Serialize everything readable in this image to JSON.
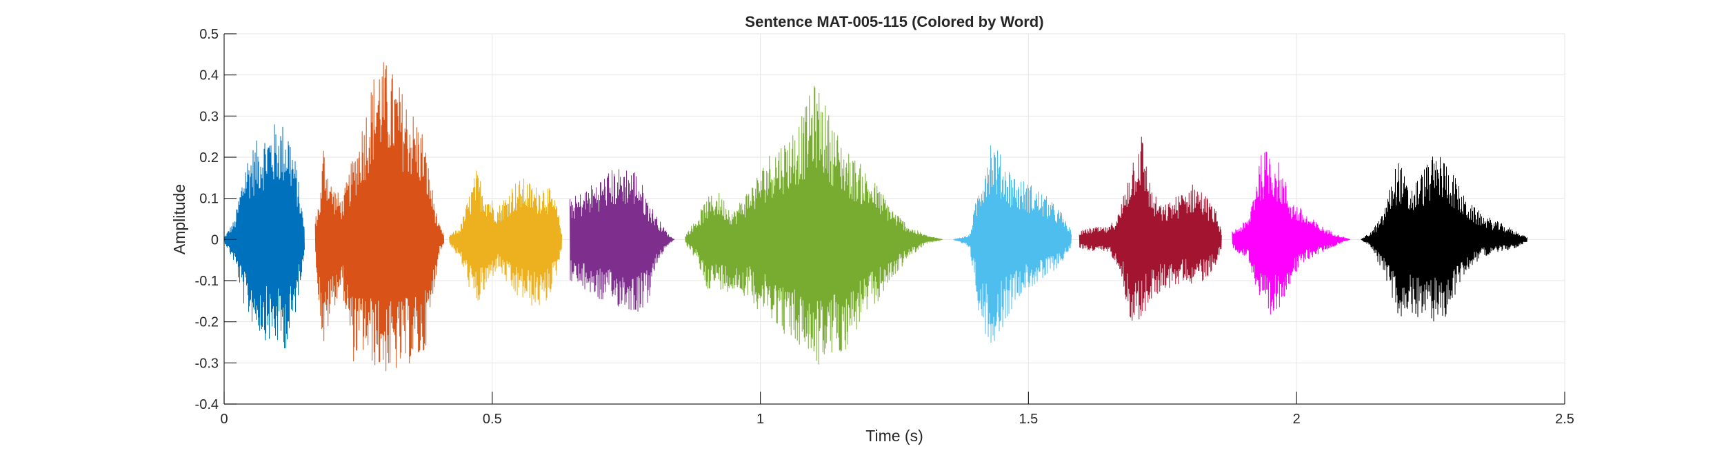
{
  "chart_data": {
    "type": "line",
    "title": "Sentence MAT-005-115 (Colored by Word)",
    "xlabel": "Time (s)",
    "ylabel": "Amplitude",
    "xlim": [
      0,
      2.5
    ],
    "ylim": [
      -0.4,
      0.5
    ],
    "grid": true,
    "legend": "none",
    "x_ticks": [
      0,
      0.5,
      1,
      1.5,
      2,
      2.5
    ],
    "x_tick_labels": [
      "0",
      "0.5",
      "1",
      "1.5",
      "2",
      "2.5"
    ],
    "y_ticks": [
      0.5,
      0.4,
      0.3,
      0.2,
      0.1,
      0,
      -0.1,
      -0.2,
      -0.3,
      -0.4
    ],
    "y_tick_labels": [
      "0.5",
      "0.4",
      "0.3",
      "0.2",
      "0.1",
      "0",
      "-0.1",
      "-0.2",
      "-0.3",
      "-0.4"
    ],
    "series": [
      {
        "color": "#0072BD",
        "t_start": 0.0,
        "t_end": 0.15,
        "envelope": [
          [
            0.0,
            0.005,
            0.005
          ],
          [
            0.02,
            0.05,
            0.06
          ],
          [
            0.04,
            0.2,
            0.18
          ],
          [
            0.06,
            0.24,
            0.22
          ],
          [
            0.08,
            0.27,
            0.25
          ],
          [
            0.1,
            0.29,
            0.26
          ],
          [
            0.12,
            0.28,
            0.27
          ],
          [
            0.135,
            0.18,
            0.17
          ],
          [
            0.15,
            0.03,
            0.03
          ]
        ]
      },
      {
        "color": "#D95319",
        "t_start": 0.17,
        "t_end": 0.41,
        "envelope": [
          [
            0.17,
            0.05,
            0.05
          ],
          [
            0.18,
            0.12,
            0.2
          ],
          [
            0.185,
            0.24,
            0.28
          ],
          [
            0.2,
            0.14,
            0.18
          ],
          [
            0.22,
            0.1,
            0.12
          ],
          [
            0.24,
            0.2,
            0.3
          ],
          [
            0.26,
            0.3,
            0.28
          ],
          [
            0.28,
            0.41,
            0.31
          ],
          [
            0.29,
            0.45,
            0.32
          ],
          [
            0.31,
            0.42,
            0.33
          ],
          [
            0.33,
            0.37,
            0.32
          ],
          [
            0.35,
            0.32,
            0.3
          ],
          [
            0.37,
            0.27,
            0.3
          ],
          [
            0.385,
            0.15,
            0.2
          ],
          [
            0.4,
            0.04,
            0.04
          ],
          [
            0.41,
            0.01,
            0.01
          ]
        ]
      },
      {
        "color": "#EDB120",
        "t_start": 0.42,
        "t_end": 0.63,
        "envelope": [
          [
            0.42,
            0.01,
            0.01
          ],
          [
            0.44,
            0.03,
            0.05
          ],
          [
            0.47,
            0.17,
            0.17
          ],
          [
            0.49,
            0.12,
            0.12
          ],
          [
            0.51,
            0.08,
            0.07
          ],
          [
            0.54,
            0.14,
            0.14
          ],
          [
            0.56,
            0.15,
            0.15
          ],
          [
            0.58,
            0.13,
            0.17
          ],
          [
            0.6,
            0.14,
            0.16
          ],
          [
            0.62,
            0.09,
            0.09
          ],
          [
            0.63,
            0.02,
            0.02
          ]
        ]
      },
      {
        "color": "#7E2F8E",
        "t_start": 0.645,
        "t_end": 0.84,
        "envelope": [
          [
            0.645,
            0.1,
            0.1
          ],
          [
            0.66,
            0.11,
            0.12
          ],
          [
            0.68,
            0.13,
            0.13
          ],
          [
            0.7,
            0.15,
            0.15
          ],
          [
            0.72,
            0.17,
            0.16
          ],
          [
            0.75,
            0.18,
            0.17
          ],
          [
            0.77,
            0.17,
            0.18
          ],
          [
            0.79,
            0.1,
            0.16
          ],
          [
            0.81,
            0.05,
            0.05
          ],
          [
            0.83,
            0.01,
            0.01
          ],
          [
            0.84,
            0.0,
            0.0
          ]
        ]
      },
      {
        "color": "#77AC30",
        "t_start": 0.86,
        "t_end": 1.34,
        "envelope": [
          [
            0.86,
            0.01,
            0.01
          ],
          [
            0.88,
            0.05,
            0.05
          ],
          [
            0.9,
            0.1,
            0.12
          ],
          [
            0.92,
            0.12,
            0.12
          ],
          [
            0.95,
            0.07,
            0.13
          ],
          [
            0.98,
            0.13,
            0.14
          ],
          [
            1.0,
            0.17,
            0.18
          ],
          [
            1.02,
            0.22,
            0.19
          ],
          [
            1.05,
            0.25,
            0.24
          ],
          [
            1.08,
            0.31,
            0.27
          ],
          [
            1.1,
            0.38,
            0.3
          ],
          [
            1.11,
            0.37,
            0.31
          ],
          [
            1.13,
            0.3,
            0.29
          ],
          [
            1.16,
            0.22,
            0.27
          ],
          [
            1.19,
            0.18,
            0.2
          ],
          [
            1.22,
            0.13,
            0.15
          ],
          [
            1.25,
            0.07,
            0.09
          ],
          [
            1.28,
            0.03,
            0.04
          ],
          [
            1.31,
            0.01,
            0.01
          ],
          [
            1.34,
            0.0,
            0.0
          ]
        ]
      },
      {
        "color": "#4DBEEE",
        "t_start": 1.36,
        "t_end": 1.58,
        "envelope": [
          [
            1.36,
            0.0,
            0.0
          ],
          [
            1.39,
            0.01,
            0.02
          ],
          [
            1.41,
            0.15,
            0.2
          ],
          [
            1.43,
            0.26,
            0.26
          ],
          [
            1.45,
            0.2,
            0.22
          ],
          [
            1.48,
            0.15,
            0.14
          ],
          [
            1.5,
            0.14,
            0.12
          ],
          [
            1.53,
            0.11,
            0.1
          ],
          [
            1.56,
            0.07,
            0.06
          ],
          [
            1.58,
            0.02,
            0.02
          ]
        ]
      },
      {
        "color": "#A2142F",
        "t_start": 1.595,
        "t_end": 1.86,
        "envelope": [
          [
            1.595,
            0.02,
            0.02
          ],
          [
            1.62,
            0.03,
            0.03
          ],
          [
            1.65,
            0.03,
            0.03
          ],
          [
            1.67,
            0.07,
            0.07
          ],
          [
            1.69,
            0.19,
            0.2
          ],
          [
            1.71,
            0.27,
            0.2
          ],
          [
            1.73,
            0.12,
            0.15
          ],
          [
            1.75,
            0.08,
            0.12
          ],
          [
            1.77,
            0.1,
            0.12
          ],
          [
            1.79,
            0.12,
            0.1
          ],
          [
            1.81,
            0.14,
            0.11
          ],
          [
            1.83,
            0.11,
            0.1
          ],
          [
            1.85,
            0.07,
            0.06
          ],
          [
            1.86,
            0.02,
            0.02
          ]
        ]
      },
      {
        "color": "#FF00FF",
        "t_start": 1.88,
        "t_end": 2.1,
        "envelope": [
          [
            1.88,
            0.02,
            0.02
          ],
          [
            1.91,
            0.05,
            0.05
          ],
          [
            1.93,
            0.2,
            0.15
          ],
          [
            1.95,
            0.23,
            0.22
          ],
          [
            1.97,
            0.18,
            0.16
          ],
          [
            1.99,
            0.1,
            0.1
          ],
          [
            2.02,
            0.06,
            0.05
          ],
          [
            2.05,
            0.03,
            0.03
          ],
          [
            2.08,
            0.01,
            0.01
          ],
          [
            2.1,
            0.0,
            0.0
          ]
        ]
      },
      {
        "color": "#000000",
        "t_start": 2.12,
        "t_end": 2.43,
        "envelope": [
          [
            2.12,
            0.0,
            0.0
          ],
          [
            2.14,
            0.02,
            0.02
          ],
          [
            2.16,
            0.06,
            0.08
          ],
          [
            2.18,
            0.16,
            0.15
          ],
          [
            2.19,
            0.2,
            0.24
          ],
          [
            2.21,
            0.12,
            0.18
          ],
          [
            2.23,
            0.16,
            0.19
          ],
          [
            2.25,
            0.2,
            0.2
          ],
          [
            2.27,
            0.21,
            0.21
          ],
          [
            2.29,
            0.17,
            0.16
          ],
          [
            2.31,
            0.11,
            0.09
          ],
          [
            2.33,
            0.08,
            0.06
          ],
          [
            2.35,
            0.06,
            0.04
          ],
          [
            2.38,
            0.04,
            0.03
          ],
          [
            2.41,
            0.02,
            0.02
          ],
          [
            2.43,
            0.005,
            0.005
          ]
        ]
      }
    ]
  }
}
